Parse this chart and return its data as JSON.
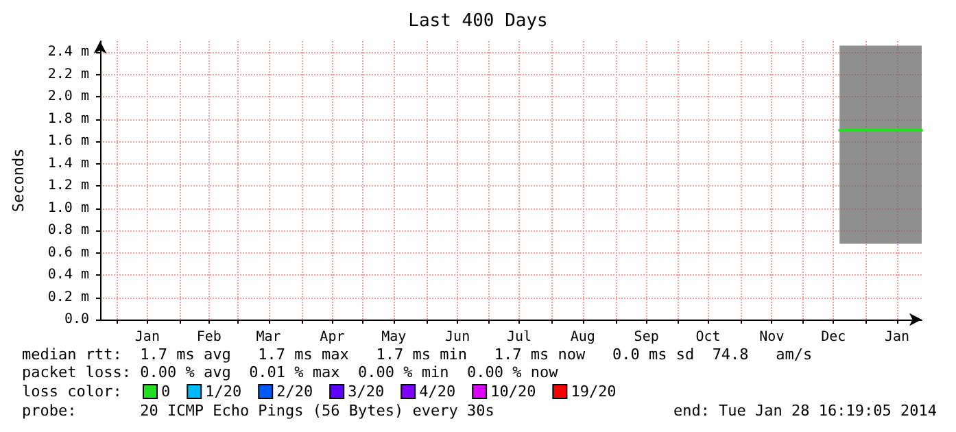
{
  "chart_data": {
    "type": "line",
    "title": "Last 400 Days",
    "ylabel": "Seconds",
    "legend_title": "loss color:",
    "x": [
      "2013-12-19",
      "2013-12-21",
      "2013-12-23",
      "2013-12-25",
      "2013-12-27",
      "2013-12-29",
      "2013-12-31",
      "2014-01-02",
      "2014-01-04",
      "2014-01-06",
      "2014-01-08",
      "2014-01-10",
      "2014-01-12",
      "2014-01-14",
      "2014-01-16",
      "2014-01-18",
      "2014-01-20",
      "2014-01-22",
      "2014-01-24",
      "2014-01-26",
      "2014-01-28"
    ],
    "xlim": [
      "2012-12-24",
      "2014-01-28"
    ],
    "xticks": [
      {
        "value": "2013-01-01",
        "label": null
      },
      {
        "value": "2013-01-16",
        "label": "Jan"
      },
      {
        "value": "2013-02-01",
        "label": null
      },
      {
        "value": "2013-02-15",
        "label": "Feb"
      },
      {
        "value": "2013-03-01",
        "label": null
      },
      {
        "value": "2013-03-16",
        "label": "Mar"
      },
      {
        "value": "2013-04-01",
        "label": null
      },
      {
        "value": "2013-04-16",
        "label": "Apr"
      },
      {
        "value": "2013-05-01",
        "label": null
      },
      {
        "value": "2013-05-16",
        "label": "May"
      },
      {
        "value": "2013-06-01",
        "label": null
      },
      {
        "value": "2013-06-16",
        "label": "Jun"
      },
      {
        "value": "2013-07-01",
        "label": null
      },
      {
        "value": "2013-07-16",
        "label": "Jul"
      },
      {
        "value": "2013-08-01",
        "label": null
      },
      {
        "value": "2013-08-16",
        "label": "Aug"
      },
      {
        "value": "2013-09-01",
        "label": null
      },
      {
        "value": "2013-09-16",
        "label": "Sep"
      },
      {
        "value": "2013-10-01",
        "label": null
      },
      {
        "value": "2013-10-16",
        "label": "Oct"
      },
      {
        "value": "2013-11-01",
        "label": null
      },
      {
        "value": "2013-11-16",
        "label": "Nov"
      },
      {
        "value": "2013-12-01",
        "label": null
      },
      {
        "value": "2013-12-16",
        "label": "Dec"
      },
      {
        "value": "2014-01-01",
        "label": null
      },
      {
        "value": "2014-01-16",
        "label": "Jan"
      }
    ],
    "ylim": [
      0,
      2.5
    ],
    "yticks": [
      {
        "value": 0,
        "label": "0.0"
      },
      {
        "value": 0.2,
        "label": "0.2 m"
      },
      {
        "value": 0.4,
        "label": "0.4 m"
      },
      {
        "value": 0.6,
        "label": "0.6 m"
      },
      {
        "value": 0.8,
        "label": "0.8 m"
      },
      {
        "value": 1.0,
        "label": "1.0 m"
      },
      {
        "value": 1.2,
        "label": "1.2 m"
      },
      {
        "value": 1.4,
        "label": "1.4 m"
      },
      {
        "value": 1.6,
        "label": "1.6 m"
      },
      {
        "value": 1.8,
        "label": "1.8 m"
      },
      {
        "value": 2.0,
        "label": "2.0 m"
      },
      {
        "value": 2.2,
        "label": "2.2 m"
      },
      {
        "value": 2.4,
        "label": "2.4 m"
      }
    ],
    "grid": true,
    "legend": "bottom",
    "marker": "none",
    "series": [
      {
        "name": "0",
        "color": "#20e020",
        "values": [
          1.7,
          1.7,
          1.7,
          1.7,
          1.7,
          1.7,
          1.7,
          1.7,
          1.7,
          1.7,
          1.7,
          1.7,
          1.7,
          1.7,
          1.7,
          1.7,
          1.7,
          1.7,
          1.7,
          1.7,
          1.7
        ],
        "lower": [
          0.68,
          0.68,
          0.68,
          0.68,
          0.68,
          0.68,
          0.68,
          0.68,
          0.68,
          0.68,
          0.68,
          0.68,
          0.68,
          0.68,
          0.68,
          0.68,
          0.68,
          0.68,
          0.68,
          0.68,
          0.68
        ],
        "upper": [
          2.46,
          2.46,
          2.46,
          2.46,
          2.46,
          2.46,
          2.46,
          2.46,
          2.46,
          2.46,
          2.46,
          2.46,
          2.46,
          2.46,
          2.46,
          2.46,
          2.46,
          2.46,
          2.46,
          2.46,
          2.46
        ]
      },
      {
        "name": "1/20",
        "color": "#00b8ff",
        "values": [
          null,
          null,
          null,
          null,
          null,
          null,
          null,
          null,
          null,
          null,
          null,
          null,
          null,
          null,
          null,
          null,
          null,
          null,
          null,
          null,
          null
        ]
      },
      {
        "name": "2/20",
        "color": "#0059ff",
        "values": [
          null,
          null,
          null,
          null,
          null,
          null,
          null,
          null,
          null,
          null,
          null,
          null,
          null,
          null,
          null,
          null,
          null,
          null,
          null,
          null,
          null
        ]
      },
      {
        "name": "3/20",
        "color": "#5e00ff",
        "values": [
          null,
          null,
          null,
          null,
          null,
          null,
          null,
          null,
          null,
          null,
          null,
          null,
          null,
          null,
          null,
          null,
          null,
          null,
          null,
          null,
          null
        ]
      },
      {
        "name": "4/20",
        "color": "#7e00ff",
        "values": [
          null,
          null,
          null,
          null,
          null,
          null,
          null,
          null,
          null,
          null,
          null,
          null,
          null,
          null,
          null,
          null,
          null,
          null,
          null,
          null,
          null
        ]
      },
      {
        "name": "10/20",
        "color": "#dd00ff",
        "values": [
          null,
          null,
          null,
          null,
          null,
          null,
          null,
          null,
          null,
          null,
          null,
          null,
          null,
          null,
          null,
          null,
          null,
          null,
          null,
          null,
          null
        ]
      },
      {
        "name": "19/20",
        "color": "#ff0000",
        "values": [
          null,
          null,
          null,
          null,
          null,
          null,
          null,
          null,
          null,
          null,
          null,
          null,
          null,
          null,
          null,
          null,
          null,
          null,
          null,
          null,
          null
        ]
      }
    ],
    "annotations": [
      "median rtt:  1.7 ms avg   1.7 ms max   1.7 ms min   1.7 ms now   0.0 ms sd  74.8   am/s",
      "packet loss: 0.00 % avg  0.01 % max  0.00 % min  0.00 % now",
      "probe:       20 ICMP Echo Pings (56 Bytes) every 30s",
      "end: Tue Jan 28 16:19:05 2014"
    ]
  }
}
